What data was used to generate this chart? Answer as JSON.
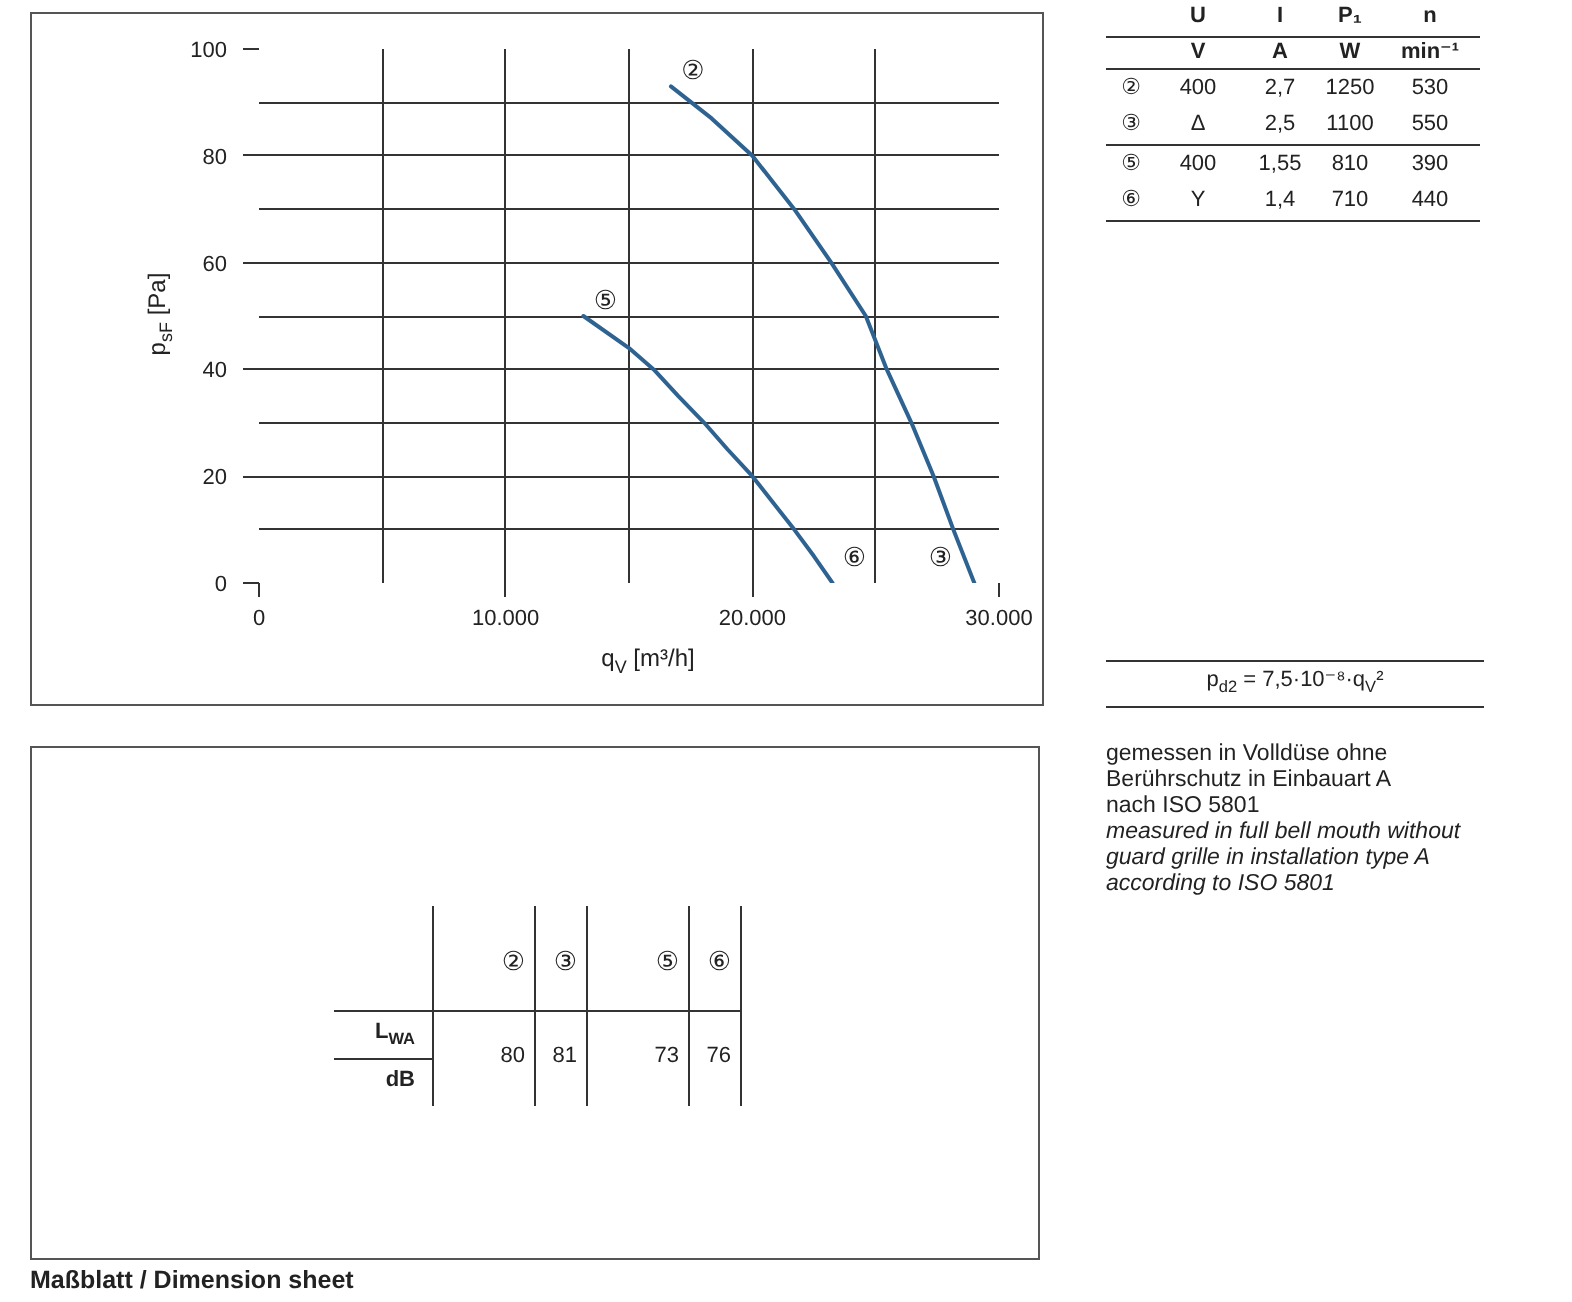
{
  "chart_data": [
    {
      "type": "line",
      "xlabel": "q$_{V}$ [m³/h]",
      "ylabel": "p$_{sF}$ [Pa]",
      "xlim": [
        0,
        30000
      ],
      "ylim": [
        0,
        100
      ],
      "xticks": [
        0,
        {
          "value": 5000,
          "label": null
        },
        {
          "value": 10000,
          "label": "10.000"
        },
        {
          "value": 15000,
          "label": null
        },
        {
          "value": 20000,
          "label": "20.000"
        },
        {
          "value": 25000,
          "label": null
        },
        {
          "value": 30000,
          "label": "30.000"
        }
      ],
      "yticks": [
        0,
        {
          "value": 10,
          "label": null
        },
        20,
        {
          "value": 30,
          "label": null
        },
        40,
        {
          "value": 50,
          "label": null
        },
        60,
        {
          "value": 70,
          "label": null
        },
        80,
        {
          "value": 90,
          "label": null
        },
        100
      ],
      "grid": true,
      "series": [
        {
          "color": "#2e6391",
          "x": [
            16700,
            18350,
            20000,
            21700,
            23200,
            24600,
            25450,
            26450,
            27350,
            28150,
            29000
          ],
          "values": [
            93,
            87,
            80,
            70,
            60,
            50,
            40,
            30,
            20,
            10,
            0
          ]
        },
        {
          "color": "#2e6391",
          "x": [
            13150,
            15000,
            16000,
            17000,
            18050,
            19000,
            20000,
            21700,
            22500,
            23250
          ],
          "values": [
            50,
            44,
            40,
            35,
            30,
            25,
            20,
            10,
            5,
            0
          ]
        }
      ],
      "annotations": [
        {
          "text": "②",
          "x": 16700,
          "y": 93
        },
        {
          "text": "③",
          "x": 29000,
          "y": 0
        },
        {
          "text": "⑤",
          "x": 13150,
          "y": 50
        },
        {
          "text": "⑥",
          "x": 23250,
          "y": 0
        }
      ]
    },
    {
      "type": "other",
      "categories": [
        "U\nV",
        "I\nA",
        "P₁\nW",
        "n\nmin⁻¹"
      ],
      "y_categories": [
        "②",
        "③",
        "⑤",
        "⑥"
      ],
      "cell_labels": [
        [
          "400",
          "2,7",
          "1250",
          "530"
        ],
        [
          "Δ",
          "2,5",
          "1100",
          "550"
        ],
        [
          "400",
          "1,55",
          "810",
          "390"
        ],
        [
          "Y",
          "1,4",
          "710",
          "440"
        ]
      ],
      "annotations": [
        "p$_{d2}$ = 7,5·10⁻⁸·q$_{V}$²"
      ]
    },
    {
      "type": "other",
      "categories": [
        "②",
        "③",
        "⑤",
        "⑥"
      ],
      "y_categories": [
        "L$_{WA}$\ndB"
      ],
      "cell_labels": [
        [
          "80",
          "81",
          "73",
          "76"
        ]
      ],
      "annotations": [
        "gemessen in Volldüse ohne\nBerührschutz in Einbauart A\nnach ISO 5801",
        "measured in full bell mouth without\nguard grille in installation type A\naccording to ISO 5801"
      ]
    },
    {
      "type": "other",
      "title": "Maßblatt / Dimension sheet"
    }
  ]
}
